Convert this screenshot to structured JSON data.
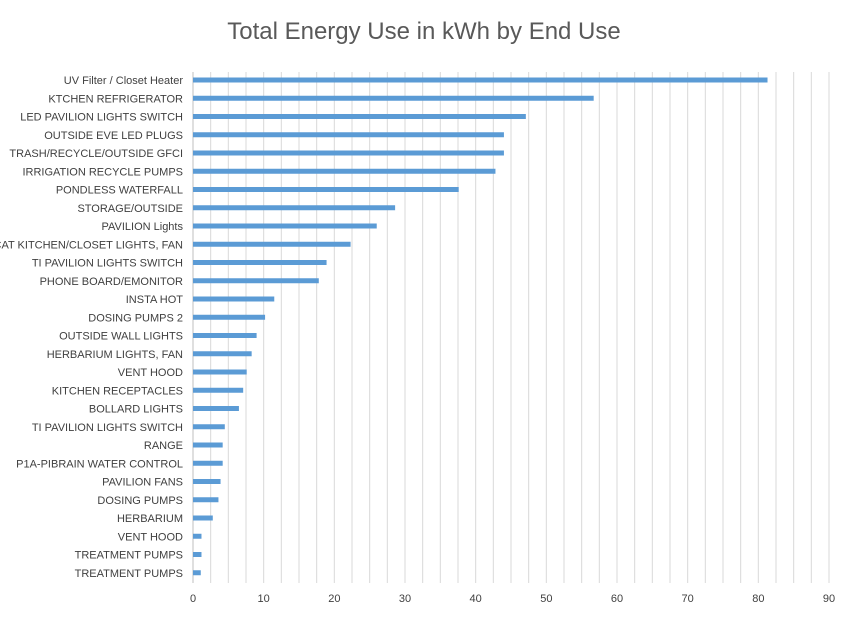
{
  "chart_data": {
    "type": "bar",
    "orientation": "horizontal",
    "title": "Total Energy Use in kWh by End Use",
    "xlabel": "",
    "ylabel": "",
    "xlim": [
      0,
      90
    ],
    "x_ticks": [
      "0",
      "10",
      "20",
      "30",
      "40",
      "50",
      "60",
      "70",
      "80",
      "90"
    ],
    "grid": "vertical, every 2.5",
    "bar_color": "#5b9bd5",
    "categories": [
      "UV Filter / Closet Heater",
      "KTCHEN REFRIGERATOR",
      "LED PAVILION LIGHTS SWITCH",
      "OUTSIDE EVE LED PLUGS",
      "TRASH/RECYCLE/OUTSIDE GFCI",
      "IRRIGATION RECYCLE PUMPS",
      "PONDLESS WATERFALL",
      "STORAGE/OUTSIDE",
      "PAVILION Lights",
      "CAT KITCHEN/CLOSET LIGHTS, FAN",
      "TI PAVILION LIGHTS SWITCH",
      "PHONE BOARD/EMONITOR",
      "INSTA HOT",
      "DOSING PUMPS 2",
      "OUTSIDE WALL LIGHTS",
      "HERBARIUM LIGHTS, FAN",
      "VENT HOOD",
      "KITCHEN RECEPTACLES",
      "BOLLARD LIGHTS",
      "TI PAVILION LIGHTS SWITCH",
      "RANGE",
      "P1A-PIBRAIN WATER CONTROL",
      "PAVILION FANS",
      "DOSING PUMPS",
      "HERBARIUM",
      "VENT HOOD",
      "TREATMENT PUMPS",
      "TREATMENT PUMPS"
    ],
    "values": [
      81.3,
      56.7,
      47.1,
      44.0,
      44.0,
      42.8,
      37.6,
      28.6,
      26.0,
      22.3,
      18.9,
      17.8,
      11.5,
      10.2,
      9.0,
      8.3,
      7.6,
      7.1,
      6.5,
      4.5,
      4.2,
      4.2,
      3.9,
      3.6,
      2.8,
      1.2,
      1.2,
      1.1
    ]
  }
}
